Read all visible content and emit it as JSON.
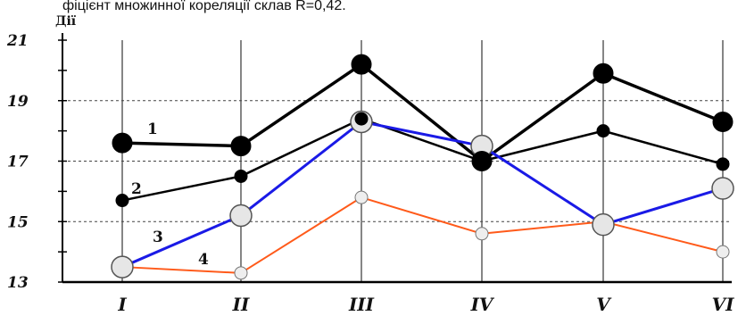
{
  "caption": "фіцієнт множинної кореляції склав R=0,42.",
  "chart_data": {
    "type": "line",
    "ylabel": "Дії",
    "xlabel": "",
    "ylim": [
      13,
      21
    ],
    "yticks": [
      13,
      15,
      17,
      19,
      21
    ],
    "categories": [
      "I",
      "II",
      "III",
      "IV",
      "V",
      "VI"
    ],
    "grid": "dashed horizontal at 15, 17, 19; vertical lines at each category",
    "series": [
      {
        "name": "1",
        "color": "#000000",
        "marker": "large filled black circle",
        "values": [
          17.6,
          17.5,
          20.2,
          17.0,
          19.9,
          18.3
        ]
      },
      {
        "name": "2",
        "color": "#000000",
        "marker": "small filled black circle",
        "values": [
          15.7,
          16.5,
          18.4,
          17.0,
          18.0,
          16.9
        ]
      },
      {
        "name": "3",
        "color": "#1a1ae6",
        "marker": "large light grey circle",
        "values": [
          13.5,
          15.2,
          18.3,
          17.5,
          14.9,
          16.1
        ]
      },
      {
        "name": "4",
        "color": "#ff5a1a",
        "marker": "small light grey circle",
        "values": [
          13.5,
          13.3,
          15.8,
          14.6,
          15.0,
          14.0
        ]
      }
    ]
  }
}
